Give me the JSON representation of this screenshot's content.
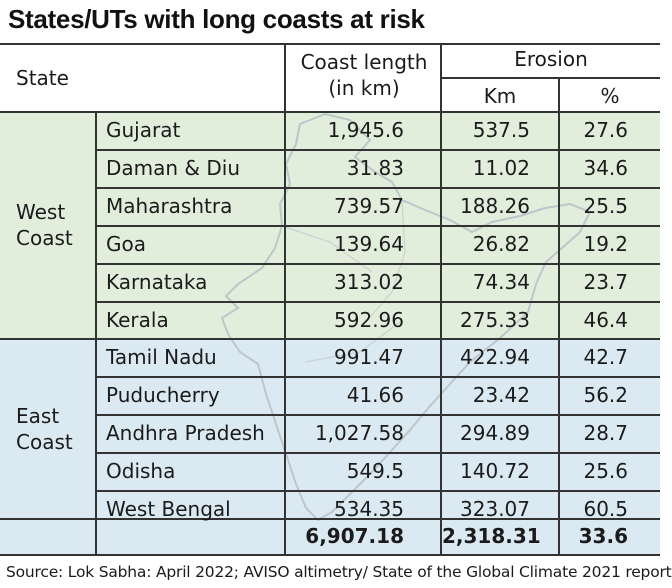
{
  "title": "States/UTs with long coasts at risk",
  "source": "Source: Lok Sabha: April 2022; AVISO altimetry/ State of the Global Climate 2021 report",
  "colors": {
    "west_band": "#e1eedc",
    "east_band": "#dbeaf2",
    "rule": "#333333"
  },
  "chart_data": {
    "type": "table",
    "title": "States/UTs with long coasts at risk",
    "headers": {
      "state": "State",
      "coast_length": [
        "Coast length",
        "(in km)"
      ],
      "erosion": "Erosion",
      "erosion_km": "Km",
      "erosion_pct": "%"
    },
    "regions": [
      {
        "name": [
          "West",
          "Coast"
        ],
        "rows": [
          {
            "state": "Gujarat",
            "coast": "1,945.6",
            "km": "537.5",
            "pct": "27.6"
          },
          {
            "state": "Daman & Diu",
            "coast": "31.83",
            "km": "11.02",
            "pct": "34.6"
          },
          {
            "state": "Maharashtra",
            "coast": "739.57",
            "km": "188.26",
            "pct": "25.5"
          },
          {
            "state": "Goa",
            "coast": "139.64",
            "km": "26.82",
            "pct": "19.2"
          },
          {
            "state": "Karnataka",
            "coast": "313.02",
            "km": "74.34",
            "pct": "23.7"
          },
          {
            "state": "Kerala",
            "coast": "592.96",
            "km": "275.33",
            "pct": "46.4"
          }
        ]
      },
      {
        "name": [
          "East",
          "Coast"
        ],
        "rows": [
          {
            "state": "Tamil Nadu",
            "coast": "991.47",
            "km": "422.94",
            "pct": "42.7"
          },
          {
            "state": "Puducherry",
            "coast": "41.66",
            "km": "23.42",
            "pct": "56.2"
          },
          {
            "state": "Andhra Pradesh",
            "coast": "1,027.58",
            "km": "294.89",
            "pct": "28.7"
          },
          {
            "state": "Odisha",
            "coast": "549.5",
            "km": "140.72",
            "pct": "25.6"
          },
          {
            "state": "West Bengal",
            "coast": "534.35",
            "km": "323.07",
            "pct": "60.5"
          }
        ]
      }
    ],
    "total": {
      "coast": "6,907.18",
      "km": "2,318.31",
      "pct": "33.6"
    }
  }
}
